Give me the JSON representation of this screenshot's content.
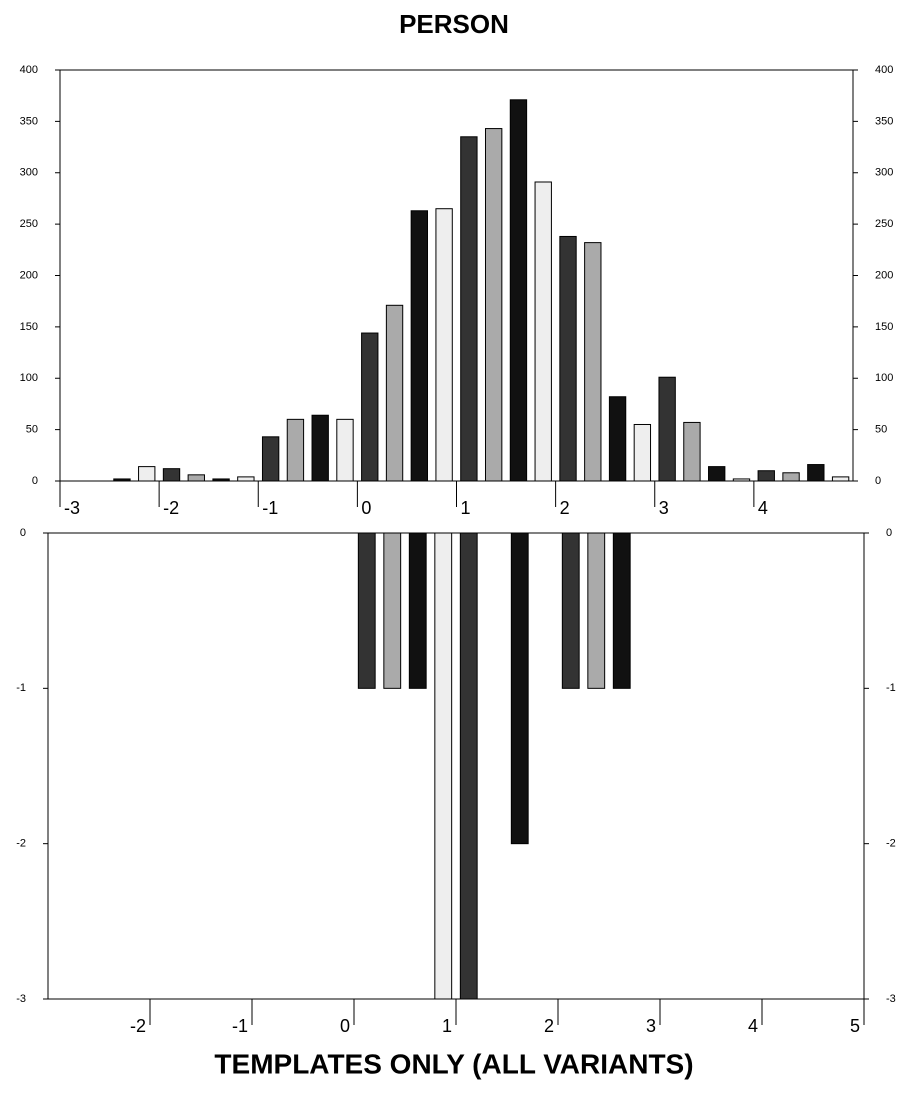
{
  "chart_data": [
    {
      "type": "histogram",
      "title": "PERSON",
      "bins": [
        -3,
        -2.75,
        -2.5,
        -2.25,
        -2,
        -1.75,
        -1.5,
        -1.25,
        -1,
        -0.75,
        -0.5,
        -0.25,
        0,
        0.25,
        0.5,
        0.75,
        1,
        1.25,
        1.5,
        1.75,
        2,
        2.25,
        2.5,
        2.75,
        3,
        3.25,
        3.5,
        3.75,
        4,
        4.25,
        4.5,
        4.75,
        5
      ],
      "values": [
        0,
        0,
        2,
        14,
        12,
        6,
        2,
        4,
        43,
        60,
        64,
        60,
        144,
        171,
        263,
        265,
        335,
        343,
        371,
        291,
        238,
        232,
        82,
        55,
        101,
        57,
        14,
        2,
        10,
        8,
        16,
        4
      ],
      "colors": [
        "#333333",
        "#aaaaaa",
        "#111111",
        "#eeeeee"
      ],
      "xlim": [
        -3,
        5
      ],
      "xticks": [
        -3,
        -2,
        -1,
        0,
        1,
        2,
        3,
        4
      ],
      "ylim": [
        0,
        400
      ],
      "yticks": [
        0,
        50,
        100,
        150,
        200,
        250,
        300,
        350,
        400
      ]
    },
    {
      "type": "histogram",
      "xlabel": "TEMPLATES ONLY (ALL VARIANTS)",
      "bins": [
        -3,
        -2.75,
        -2.5,
        -2.25,
        -2,
        -1.75,
        -1.5,
        -1.25,
        -1,
        -0.75,
        -0.5,
        -0.25,
        0,
        0.25,
        0.5,
        0.75,
        1,
        1.25,
        1.5,
        1.75,
        2,
        2.25,
        2.5,
        2.75,
        3,
        3.25,
        3.5,
        3.75,
        4,
        4.25,
        4.5,
        4.75,
        5
      ],
      "values": [
        0,
        0,
        0,
        0,
        0,
        0,
        0,
        0,
        0,
        0,
        0,
        0,
        -1,
        -1,
        -1,
        -3,
        -3,
        0,
        -2,
        0,
        -1,
        -1,
        -1,
        0,
        0,
        0,
        0,
        0,
        0,
        0,
        0,
        0
      ],
      "colors": [
        "#333333",
        "#aaaaaa",
        "#111111",
        "#eeeeee"
      ],
      "xlim": [
        -3,
        5
      ],
      "xticks": [
        -2,
        -1,
        0,
        1,
        2,
        3,
        4,
        5
      ],
      "ylim": [
        -3,
        0
      ],
      "yticks": [
        -3,
        -2,
        -1,
        0
      ]
    }
  ]
}
